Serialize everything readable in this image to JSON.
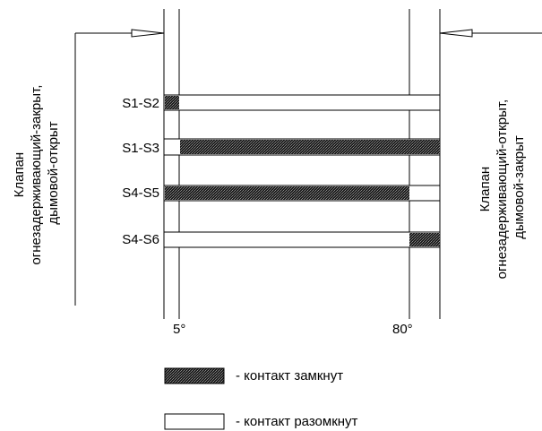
{
  "left_caption": {
    "lines": [
      "Клапан",
      "огнезадерживающий-закрыт,",
      "дымовой-открыт"
    ]
  },
  "right_caption": {
    "lines": [
      "Клапан",
      "огнезадерживающий-открыт,",
      "дымовой-закрыт"
    ]
  },
  "contacts": [
    {
      "label": "S1-S2",
      "closed_ranges": [
        [
          0,
          5
        ]
      ]
    },
    {
      "label": "S1-S3",
      "closed_ranges": [
        [
          5,
          85
        ]
      ]
    },
    {
      "label": "S4-S5",
      "closed_ranges": [
        [
          0,
          80
        ]
      ]
    },
    {
      "label": "S4-S6",
      "closed_ranges": [
        [
          80,
          85
        ]
      ]
    }
  ],
  "axis": {
    "min_deg": 0,
    "max_deg": 85,
    "tick_labels": [
      "5°",
      "80°"
    ]
  },
  "legend": {
    "closed_label": "- контакт замкнут",
    "open_label": "- контакт разомкнут"
  },
  "colors": {
    "closed_fill": "#3a3a3a",
    "stroke": "#000000"
  }
}
